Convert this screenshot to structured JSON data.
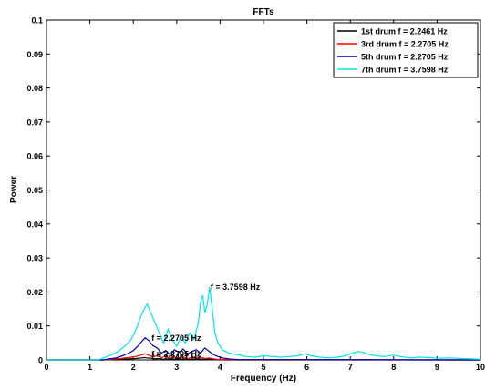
{
  "chart_data": {
    "type": "line",
    "title": "FFTs",
    "xlabel": "Frequency (Hz)",
    "ylabel": "Power",
    "xlim": [
      0,
      10
    ],
    "ylim": [
      0,
      0.1
    ],
    "xticks": [
      "0",
      "1",
      "2",
      "3",
      "4",
      "5",
      "6",
      "7",
      "8",
      "9",
      "10"
    ],
    "yticks": [
      "0",
      "0.01",
      "0.02",
      "0.03",
      "0.04",
      "0.05",
      "0.06",
      "0.07",
      "0.08",
      "0.09",
      "0.1"
    ],
    "grid": false,
    "legend_position": "top-right",
    "series": [
      {
        "name": "1st drum f = 2.2461 Hz",
        "color": "#000000",
        "x": [
          0,
          1.3,
          1.5,
          1.7,
          1.9,
          2.05,
          2.2,
          2.25,
          2.3,
          2.4,
          2.5,
          2.6,
          2.7,
          2.8,
          2.9,
          3.0,
          3.1,
          3.2,
          3.3,
          3.4,
          3.5,
          3.6,
          3.7,
          3.8,
          3.9,
          4.0,
          4.1,
          10
        ],
        "y": [
          0,
          0,
          0.0001,
          0.0002,
          0.0003,
          0.0004,
          0.0006,
          0.0007,
          0.0006,
          0.0005,
          0.0003,
          0.0004,
          0.0002,
          0.0003,
          0.0002,
          0.0003,
          0.0002,
          0.0003,
          0.0002,
          0.0002,
          0.0003,
          0.0002,
          0.0003,
          0.0002,
          0.0001,
          0.0001,
          0,
          0
        ]
      },
      {
        "name": "3rd drum f = 2.2705 Hz",
        "color": "#ff0000",
        "x": [
          0,
          1.3,
          1.5,
          1.7,
          1.9,
          2.05,
          2.2,
          2.27,
          2.35,
          2.45,
          2.55,
          2.65,
          2.75,
          2.85,
          2.95,
          3.05,
          3.15,
          3.25,
          3.35,
          3.45,
          3.55,
          3.65,
          3.75,
          3.85,
          3.95,
          4.1,
          10
        ],
        "y": [
          0,
          0,
          0.0002,
          0.0004,
          0.0007,
          0.001,
          0.0015,
          0.0018,
          0.0014,
          0.0009,
          0.0012,
          0.0007,
          0.001,
          0.0005,
          0.0008,
          0.0006,
          0.0009,
          0.0004,
          0.0007,
          0.0005,
          0.0008,
          0.0004,
          0.0006,
          0.0003,
          0.0002,
          0.0001,
          0
        ]
      },
      {
        "name": "5th drum f = 2.2705 Hz",
        "color": "#0000aa",
        "x": [
          0,
          1.3,
          1.45,
          1.6,
          1.75,
          1.9,
          2.0,
          2.1,
          2.2,
          2.27,
          2.35,
          2.45,
          2.55,
          2.65,
          2.75,
          2.85,
          2.95,
          3.05,
          3.15,
          3.25,
          3.35,
          3.45,
          3.55,
          3.65,
          3.75,
          3.85,
          3.95,
          4.05,
          4.2,
          4.4,
          10
        ],
        "y": [
          0,
          0,
          0.0003,
          0.0006,
          0.0012,
          0.002,
          0.0028,
          0.004,
          0.0055,
          0.0065,
          0.0058,
          0.0042,
          0.0035,
          0.002,
          0.0028,
          0.0015,
          0.003,
          0.0022,
          0.0032,
          0.0018,
          0.0025,
          0.003,
          0.002,
          0.0035,
          0.0025,
          0.0015,
          0.001,
          0.0006,
          0.0003,
          0.0001,
          0
        ]
      },
      {
        "name": "7th drum f = 3.7598 Hz",
        "color": "#00e5e5",
        "x": [
          0,
          1.2,
          1.35,
          1.5,
          1.65,
          1.8,
          1.95,
          2.05,
          2.15,
          2.25,
          2.32,
          2.4,
          2.5,
          2.6,
          2.7,
          2.8,
          2.9,
          3.0,
          3.1,
          3.2,
          3.3,
          3.4,
          3.5,
          3.55,
          3.6,
          3.65,
          3.7,
          3.76,
          3.82,
          3.88,
          3.95,
          4.05,
          4.2,
          4.4,
          4.6,
          4.8,
          5.0,
          5.2,
          5.4,
          5.6,
          5.8,
          5.95,
          6.1,
          6.3,
          6.5,
          6.7,
          6.9,
          7.05,
          7.2,
          7.3,
          7.45,
          7.6,
          7.8,
          8.0,
          8.2,
          8.4,
          8.6,
          8.8,
          9.0,
          9.3,
          9.6,
          9.8,
          10
        ],
        "y": [
          0,
          0,
          0.0008,
          0.0015,
          0.0025,
          0.004,
          0.006,
          0.0085,
          0.012,
          0.015,
          0.0165,
          0.014,
          0.011,
          0.008,
          0.005,
          0.009,
          0.006,
          0.004,
          0.007,
          0.005,
          0.008,
          0.006,
          0.011,
          0.017,
          0.019,
          0.014,
          0.016,
          0.0215,
          0.015,
          0.008,
          0.005,
          0.003,
          0.002,
          0.0015,
          0.001,
          0.0008,
          0.0012,
          0.001,
          0.0008,
          0.001,
          0.0012,
          0.0018,
          0.0012,
          0.0008,
          0.0006,
          0.0008,
          0.0012,
          0.002,
          0.0025,
          0.0022,
          0.0015,
          0.0012,
          0.001,
          0.0014,
          0.0009,
          0.0006,
          0.0008,
          0.0007,
          0.0005,
          0.0006,
          0.0004,
          0.0003,
          0.0002
        ]
      }
    ],
    "annotations": [
      {
        "text": "f = 3.7598 Hz",
        "x": 3.78,
        "y": 0.0215
      },
      {
        "text": "f = 2.2705 Hz",
        "x": 2.42,
        "y": 0.0065
      },
      {
        "text": "f = 2.2705 Hz",
        "x": 2.42,
        "y": 0.0018
      },
      {
        "text": "f = 2.2461 Hz",
        "x": 2.42,
        "y": 0.0007
      }
    ]
  }
}
